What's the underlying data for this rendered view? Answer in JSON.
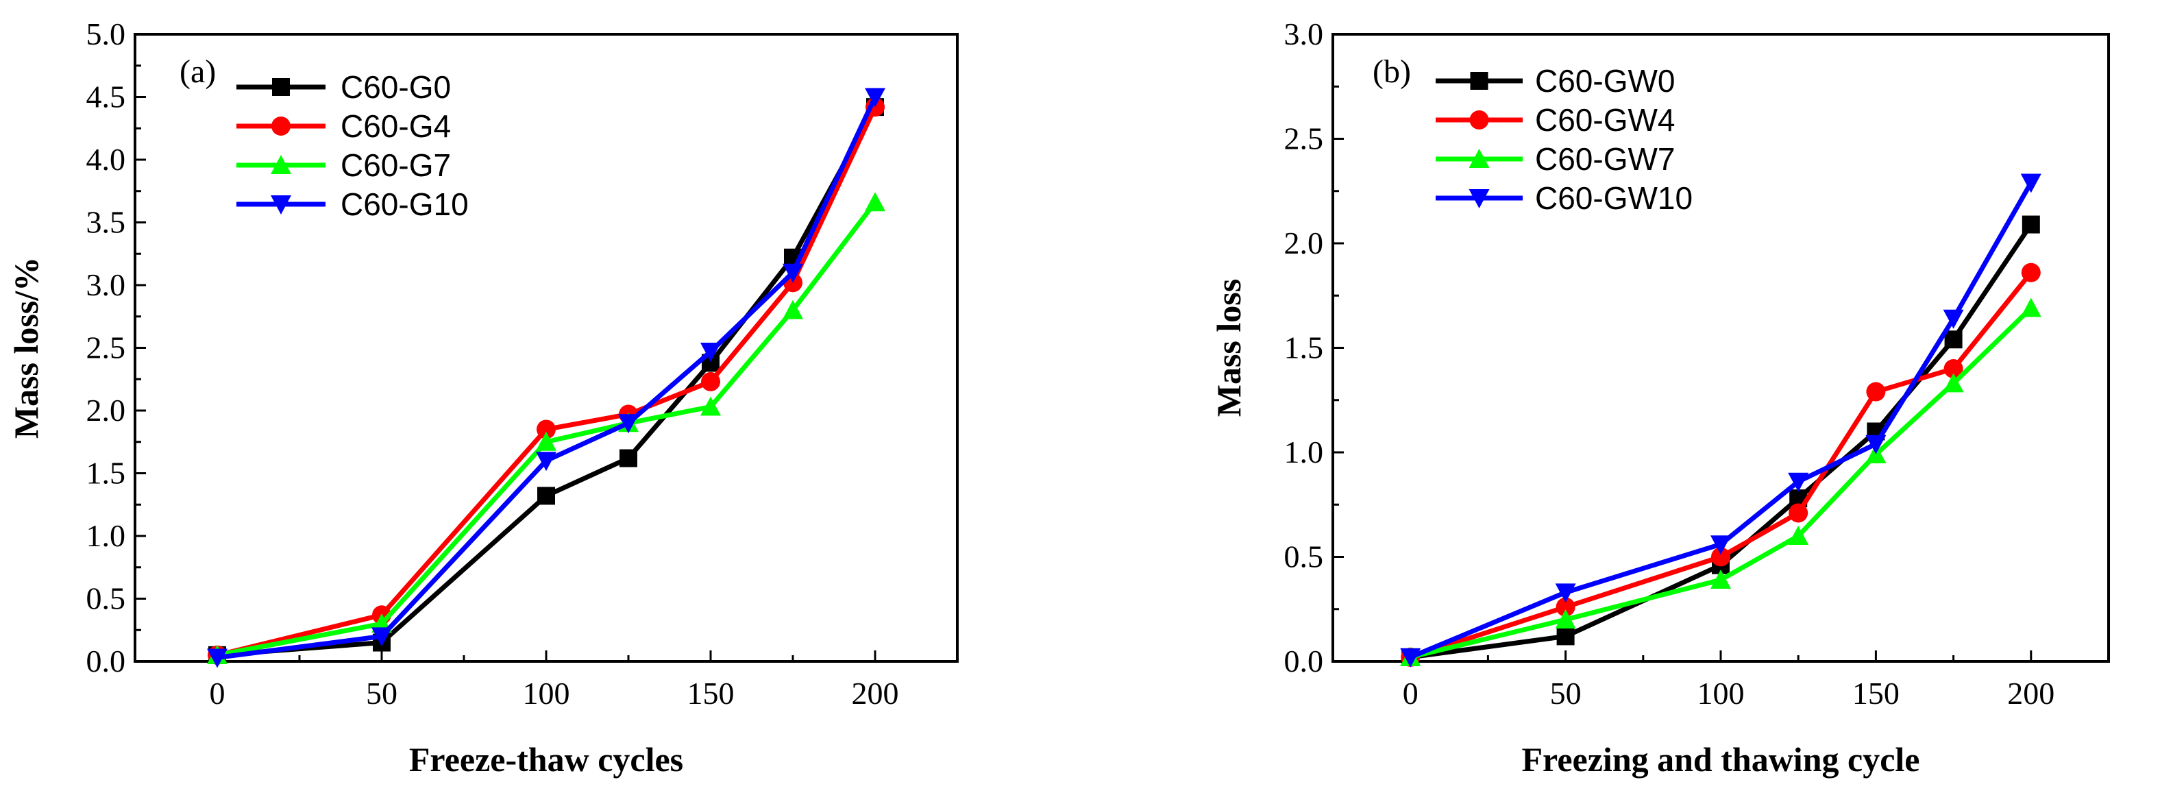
{
  "chart_data": [
    {
      "type": "line",
      "panel_label": "(a)",
      "xlabel": "Freeze-thaw cycles",
      "ylabel": "Mass loss/%",
      "xlim": [
        -25,
        225
      ],
      "ylim": [
        0,
        5.0
      ],
      "xticks": [
        0,
        50,
        100,
        150,
        200
      ],
      "yticks": [
        0.0,
        0.5,
        1.0,
        1.5,
        2.0,
        2.5,
        3.0,
        3.5,
        4.0,
        4.5,
        5.0
      ],
      "ytick_labels": [
        "0.0",
        "0.5",
        "1.0",
        "1.5",
        "2.0",
        "2.5",
        "3.0",
        "3.5",
        "4.0",
        "4.5",
        "5.0"
      ],
      "xtick_labels": [
        "0",
        "50",
        "100",
        "150",
        "200"
      ],
      "legend_position": "top-left",
      "grid": false,
      "series": [
        {
          "name": "C60-G0",
          "color": "#000000",
          "marker": "square",
          "x": [
            0,
            50,
            100,
            125,
            150,
            175,
            200
          ],
          "y": [
            0.05,
            0.15,
            1.32,
            1.62,
            2.38,
            3.22,
            4.42
          ]
        },
        {
          "name": "C60-G4",
          "color": "#ff0000",
          "marker": "circle",
          "x": [
            0,
            50,
            100,
            125,
            150,
            175,
            200
          ],
          "y": [
            0.05,
            0.37,
            1.85,
            1.97,
            2.23,
            3.02,
            4.42
          ]
        },
        {
          "name": "C60-G7",
          "color": "#00ff00",
          "marker": "triangle-up",
          "x": [
            0,
            50,
            100,
            125,
            150,
            175,
            200
          ],
          "y": [
            0.05,
            0.3,
            1.75,
            1.9,
            2.03,
            2.8,
            3.66
          ]
        },
        {
          "name": "C60-G10",
          "color": "#0000ff",
          "marker": "triangle-down",
          "x": [
            0,
            50,
            100,
            125,
            150,
            175,
            200
          ],
          "y": [
            0.03,
            0.2,
            1.6,
            1.9,
            2.47,
            3.1,
            4.5
          ]
        }
      ]
    },
    {
      "type": "line",
      "panel_label": "(b)",
      "xlabel": "Freezing and thawing cycle",
      "ylabel": "Mass loss",
      "xlim": [
        -25,
        225
      ],
      "ylim": [
        0,
        3.0
      ],
      "xticks": [
        0,
        50,
        100,
        150,
        200
      ],
      "yticks": [
        0.0,
        0.5,
        1.0,
        1.5,
        2.0,
        2.5,
        3.0
      ],
      "ytick_labels": [
        "0.0",
        "0.5",
        "1.0",
        "1.5",
        "2.0",
        "2.5",
        "3.0"
      ],
      "xtick_labels": [
        "0",
        "50",
        "100",
        "150",
        "200"
      ],
      "legend_position": "top-left",
      "grid": false,
      "series": [
        {
          "name": "C60-GW0",
          "color": "#000000",
          "marker": "square",
          "x": [
            0,
            50,
            100,
            125,
            150,
            175,
            200
          ],
          "y": [
            0.02,
            0.12,
            0.46,
            0.78,
            1.1,
            1.54,
            2.09
          ]
        },
        {
          "name": "C60-GW4",
          "color": "#ff0000",
          "marker": "circle",
          "x": [
            0,
            50,
            100,
            125,
            150,
            175,
            200
          ],
          "y": [
            0.02,
            0.26,
            0.5,
            0.71,
            1.29,
            1.4,
            1.86
          ]
        },
        {
          "name": "C60-GW7",
          "color": "#00ff00",
          "marker": "triangle-up",
          "x": [
            0,
            50,
            100,
            125,
            150,
            175,
            200
          ],
          "y": [
            0.02,
            0.2,
            0.39,
            0.6,
            0.99,
            1.33,
            1.69
          ]
        },
        {
          "name": "C60-GW10",
          "color": "#0000ff",
          "marker": "triangle-down",
          "x": [
            0,
            50,
            100,
            125,
            150,
            175,
            200
          ],
          "y": [
            0.02,
            0.33,
            0.56,
            0.86,
            1.04,
            1.64,
            2.29
          ]
        }
      ]
    }
  ]
}
